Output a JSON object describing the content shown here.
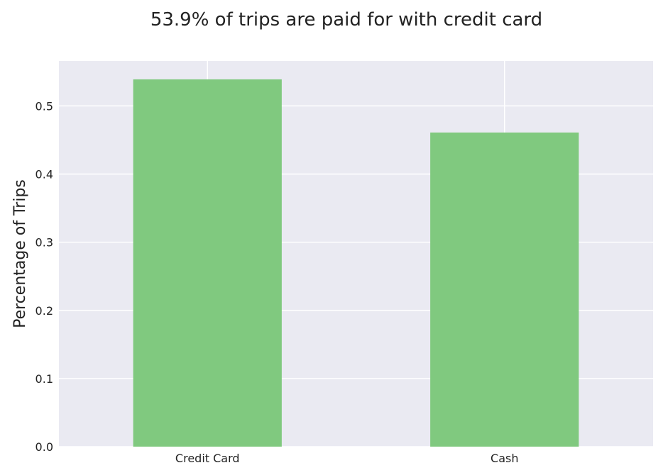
{
  "chart_data": {
    "type": "bar",
    "title": "53.9% of trips are paid for with credit card",
    "xlabel": "",
    "ylabel": "Percentage of Trips",
    "categories": [
      "Credit Card",
      "Cash"
    ],
    "values": [
      0.539,
      0.461
    ],
    "ylim": [
      0,
      0.566
    ],
    "yticks": [
      "0.0",
      "0.1",
      "0.2",
      "0.3",
      "0.4",
      "0.5"
    ],
    "grid": true,
    "legend": "none",
    "colors": {
      "bar": "#80c97f",
      "plot_bg": "#eaeaf2",
      "grid": "#ffffff"
    }
  }
}
